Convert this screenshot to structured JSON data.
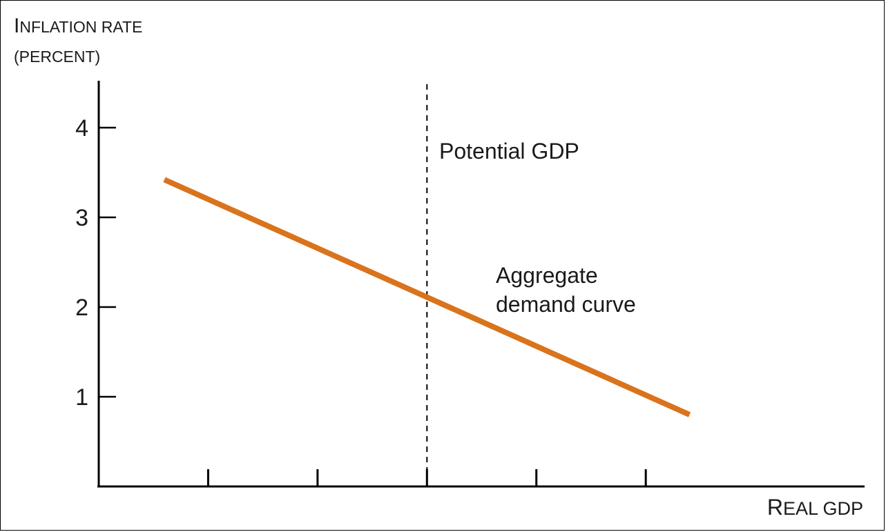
{
  "chart_data": {
    "type": "line",
    "ylabel_line1_initial": "I",
    "ylabel_line1_rest": "NFLATION RATE",
    "ylabel_line2": "(PERCENT)",
    "xlabel_initial": "R",
    "xlabel_rest": "EAL GDP",
    "ylim": [
      0,
      4.5
    ],
    "xlim": [
      0,
      7
    ],
    "y_ticks": [
      "1",
      "2",
      "3",
      "4"
    ],
    "x_tick_count": 5,
    "grid": false,
    "series": [
      {
        "name": "Aggregate demand curve",
        "color": "#d9731c",
        "points": [
          [
            0.6,
            3.42
          ],
          [
            5.4,
            0.8
          ]
        ]
      }
    ],
    "reference_lines": [
      {
        "name": "Potential GDP",
        "x": 3.0,
        "style": "dashed"
      }
    ],
    "annotations": {
      "potential_gdp": "Potential GDP",
      "ad_line1": "Aggregate",
      "ad_line2": "demand curve"
    }
  }
}
